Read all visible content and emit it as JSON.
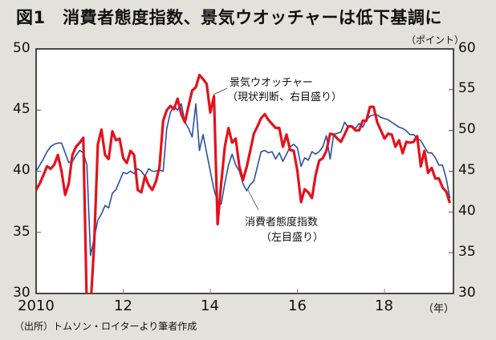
{
  "chart_data": {
    "type": "line",
    "title": "図1　消費者態度指数、景気ウオッチャーは低下基調に",
    "right_unit": "（ポイント）",
    "x_unit": "（年）",
    "source": "（出所）トムソン・ロイターより筆者作成",
    "x_ticks": [
      "2010",
      "12",
      "14",
      "16",
      "18"
    ],
    "xlim": [
      "2010-01",
      "2019-08"
    ],
    "left_axis": {
      "ylim": [
        30,
        50
      ],
      "ticks": [
        "50",
        "45",
        "40",
        "35",
        "30"
      ]
    },
    "right_axis": {
      "ylim": [
        30,
        60
      ],
      "ticks": [
        "60",
        "55",
        "50",
        "45",
        "40",
        "35",
        "30"
      ]
    },
    "grid": false,
    "x": [
      "2010-01",
      "2010-02",
      "2010-03",
      "2010-04",
      "2010-05",
      "2010-06",
      "2010-07",
      "2010-08",
      "2010-09",
      "2010-10",
      "2010-11",
      "2010-12",
      "2011-01",
      "2011-02",
      "2011-03",
      "2011-04",
      "2011-05",
      "2011-06",
      "2011-07",
      "2011-08",
      "2011-09",
      "2011-10",
      "2011-11",
      "2011-12",
      "2012-01",
      "2012-02",
      "2012-03",
      "2012-04",
      "2012-05",
      "2012-06",
      "2012-07",
      "2012-08",
      "2012-09",
      "2012-10",
      "2012-11",
      "2012-12",
      "2013-01",
      "2013-02",
      "2013-03",
      "2013-04",
      "2013-05",
      "2013-06",
      "2013-07",
      "2013-08",
      "2013-09",
      "2013-10",
      "2013-11",
      "2013-12",
      "2014-01",
      "2014-02",
      "2014-03",
      "2014-04",
      "2014-05",
      "2014-06",
      "2014-07",
      "2014-08",
      "2014-09",
      "2014-10",
      "2014-11",
      "2014-12",
      "2015-01",
      "2015-02",
      "2015-03",
      "2015-04",
      "2015-05",
      "2015-06",
      "2015-07",
      "2015-08",
      "2015-09",
      "2015-10",
      "2015-11",
      "2015-12",
      "2016-01",
      "2016-02",
      "2016-03",
      "2016-04",
      "2016-05",
      "2016-06",
      "2016-07",
      "2016-08",
      "2016-09",
      "2016-10",
      "2016-11",
      "2016-12",
      "2017-01",
      "2017-02",
      "2017-03",
      "2017-04",
      "2017-05",
      "2017-06",
      "2017-07",
      "2017-08",
      "2017-09",
      "2017-10",
      "2017-11",
      "2017-12",
      "2018-01",
      "2018-02",
      "2018-03",
      "2018-04",
      "2018-05",
      "2018-06",
      "2018-07",
      "2018-08",
      "2018-09",
      "2018-10",
      "2018-11",
      "2018-12",
      "2019-01",
      "2019-02",
      "2019-03",
      "2019-04",
      "2019-05",
      "2019-06",
      "2019-07"
    ],
    "series": [
      {
        "name": "消費者態度指数",
        "name_line2": "（左目盛り）",
        "axis": "left",
        "color": "#2a4fa3",
        "values": [
          40.0,
          40.5,
          41.0,
          41.6,
          42.0,
          42.2,
          42.3,
          42.3,
          41.5,
          40.7,
          40.8,
          41.3,
          41.7,
          41.5,
          40.5,
          33.1,
          34.5,
          36.0,
          36.5,
          37.2,
          37.0,
          38.2,
          38.5,
          39.2,
          39.9,
          39.8,
          40.0,
          39.8,
          40.2,
          40.0,
          39.6,
          40.2,
          40.0,
          40.0,
          40.1,
          40.0,
          43.5,
          44.8,
          45.3,
          45.0,
          45.5,
          44.0,
          43.5,
          42.8,
          45.5,
          41.7,
          43.0,
          41.5,
          40.0,
          38.5,
          37.5,
          37.3,
          39.0,
          40.5,
          41.4,
          40.5,
          40.0,
          39.0,
          38.4,
          38.9,
          39.2,
          40.4,
          41.6,
          41.7,
          41.5,
          41.6,
          41.0,
          41.5,
          40.8,
          41.4,
          42.0,
          42.2,
          41.9,
          40.4,
          41.1,
          40.9,
          41.6,
          41.4,
          41.6,
          42.0,
          42.9,
          41.0,
          43.0,
          43.1,
          43.2,
          44.0,
          43.6,
          43.7,
          43.5,
          43.9,
          43.6,
          44.2,
          44.5,
          44.6,
          44.6,
          44.4,
          44.3,
          44.2,
          44.0,
          43.8,
          43.6,
          43.5,
          43.3,
          43.0,
          43.0,
          42.7,
          42.5,
          42.0,
          41.5,
          41.5,
          41.1,
          40.5,
          40.5,
          39.4,
          37.8
        ]
      },
      {
        "name": "景気ウオッチャー",
        "name_line2": "（現状判断、右目盛り）",
        "axis": "right",
        "color": "#e3121c",
        "values": [
          42.7,
          43.5,
          44.5,
          45.6,
          45.3,
          45.8,
          47.0,
          45.0,
          42.1,
          43.5,
          47.0,
          48.0,
          48.5,
          49.1,
          27.7,
          28.3,
          36.0,
          48.3,
          50.1,
          47.0,
          46.5,
          49.9,
          48.8,
          49.0,
          46.6,
          46.0,
          47.5,
          47.0,
          42.7,
          42.4,
          44.4,
          43.3,
          42.7,
          43.7,
          45.5,
          51.2,
          52.5,
          53.0,
          52.6,
          53.9,
          52.0,
          51.0,
          53.0,
          54.9,
          55.3,
          56.8,
          56.3,
          55.7,
          52.2,
          54.2,
          38.5,
          43.5,
          48.0,
          50.3,
          48.5,
          49.0,
          45.6,
          43.9,
          45.5,
          47.5,
          49.6,
          50.5,
          51.5,
          52.0,
          51.3,
          50.8,
          50.3,
          50.3,
          48.0,
          49.5,
          47.6,
          47.5,
          45.0,
          41.2,
          42.8,
          42.4,
          41.7,
          44.5,
          46.3,
          46.6,
          47.5,
          49.6,
          49.5,
          49.0,
          48.6,
          49.5,
          50.5,
          50.5,
          50.0,
          50.0,
          51.2,
          51.2,
          52.9,
          52.9,
          51.0,
          50.0,
          49.0,
          49.6,
          49.5,
          48.0,
          48.8,
          47.2,
          48.6,
          48.5,
          48.6,
          49.3,
          45.6,
          47.5,
          44.8,
          45.4,
          44.1,
          44.1,
          43.0,
          42.5,
          41.1
        ]
      }
    ]
  }
}
